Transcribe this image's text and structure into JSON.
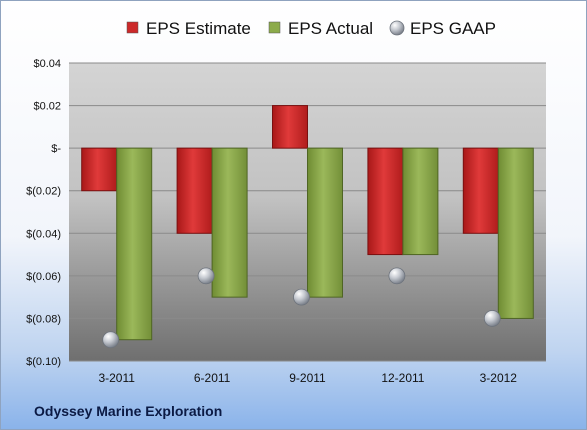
{
  "chart_data": {
    "type": "bar",
    "categories": [
      "3-2011",
      "6-2011",
      "9-2011",
      "12-2011",
      "3-2012"
    ],
    "series": [
      {
        "name": "EPS Estimate",
        "type": "bar",
        "color": "#cc2a2a",
        "values": [
          -0.02,
          -0.04,
          0.02,
          -0.05,
          -0.04
        ]
      },
      {
        "name": "EPS Actual",
        "type": "bar",
        "color": "#8cab4a",
        "values": [
          -0.09,
          -0.07,
          -0.07,
          -0.05,
          -0.08
        ]
      },
      {
        "name": "EPS GAAP",
        "type": "scatter",
        "color": "#b9bfc9",
        "values": [
          -0.09,
          -0.06,
          -0.07,
          -0.06,
          -0.08
        ]
      }
    ],
    "ylim": [
      -0.1,
      0.04
    ],
    "yticks": [
      0.04,
      0.02,
      0,
      -0.02,
      -0.04,
      -0.06,
      -0.08,
      -0.1
    ],
    "ytick_labels": [
      "$0.04",
      "$0.02",
      "$-",
      "$(0.02)",
      "$(0.04)",
      "$(0.06)",
      "$(0.08)",
      "$(0.10)"
    ],
    "grid": true,
    "legend": "top"
  },
  "footer": {
    "company": "Odyssey Marine Exploration"
  }
}
